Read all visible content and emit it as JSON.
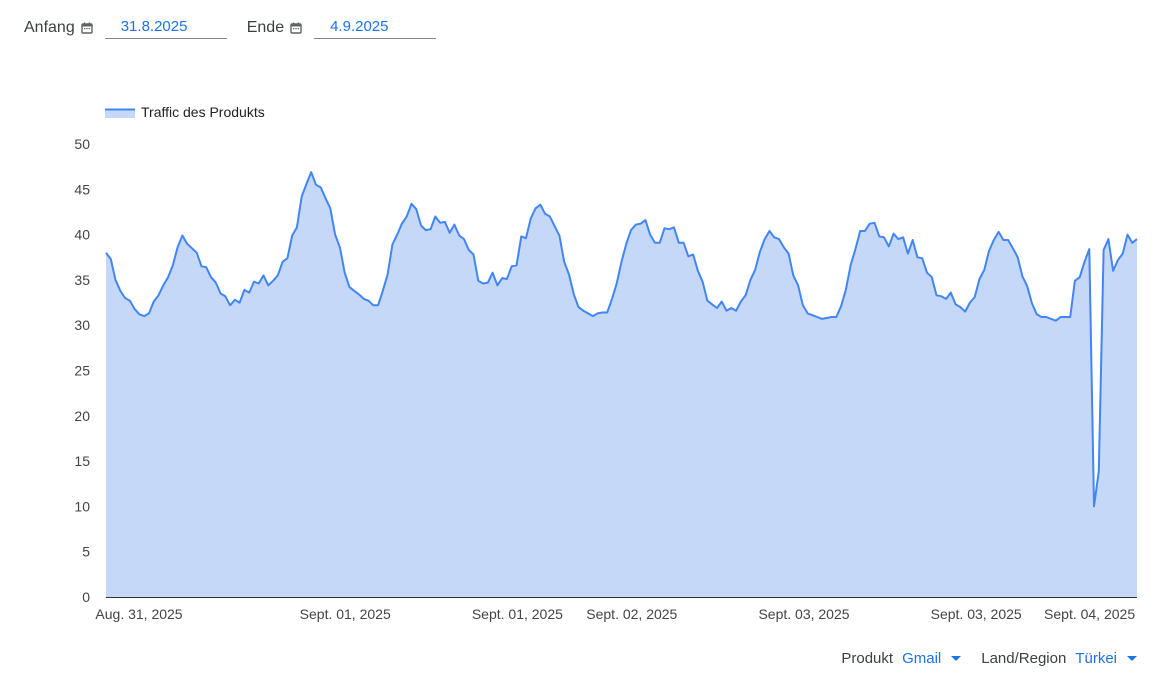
{
  "filters": {
    "start": {
      "label": "Anfang",
      "icon": "calendar-icon",
      "value": "31.8.2025"
    },
    "end": {
      "label": "Ende",
      "icon": "calendar-icon",
      "value": "4.9.2025"
    }
  },
  "selectors": {
    "product": {
      "label": "Produkt",
      "value": "Gmail",
      "icon": "dropdown-arrow-icon"
    },
    "region": {
      "label": "Land/Region",
      "value": "Türkei",
      "icon": "dropdown-arrow-icon"
    }
  },
  "colors": {
    "line": "#4285f4",
    "fill": "#c6d8f8",
    "axis": "#333333",
    "accent": "#1a73e8"
  },
  "chart_data": {
    "type": "area",
    "title": "",
    "xlabel": "",
    "ylabel": "",
    "ylim": [
      0,
      50
    ],
    "yticks": [
      0,
      5,
      10,
      15,
      20,
      25,
      30,
      35,
      40,
      45,
      50
    ],
    "grid": false,
    "legend": {
      "position": "top-left",
      "entries": [
        "Traffic des Produkts"
      ]
    },
    "xtick_labels": [
      "Aug. 31, 2025",
      "Sept. 01, 2025",
      "Sept. 01, 2025",
      "Sept. 02, 2025",
      "Sept. 03, 2025",
      "Sept. 03, 2025",
      "Sept. 04, 2025"
    ],
    "xtick_positions": [
      0.0,
      0.2,
      0.367,
      0.478,
      0.645,
      0.812,
      0.922
    ],
    "series": [
      {
        "name": "Traffic des Produkts",
        "values": [
          38.0,
          37.3,
          35.0,
          33.8,
          33.0,
          32.7,
          31.8,
          31.2,
          31.0,
          31.3,
          32.6,
          33.3,
          34.4,
          35.3,
          36.6,
          38.6,
          39.9,
          39.0,
          38.5,
          38.0,
          36.5,
          36.4,
          35.3,
          34.7,
          33.5,
          33.2,
          32.2,
          32.8,
          32.5,
          33.9,
          33.6,
          34.8,
          34.6,
          35.5,
          34.4,
          34.9,
          35.5,
          37.0,
          37.4,
          39.9,
          40.8,
          44.2,
          45.6,
          46.9,
          45.5,
          45.2,
          44.0,
          42.9,
          40.0,
          38.6,
          35.8,
          34.2,
          33.8,
          33.4,
          32.9,
          32.7,
          32.2,
          32.2,
          33.8,
          35.6,
          38.9,
          40.0,
          41.2,
          42.0,
          43.4,
          42.8,
          41.0,
          40.5,
          40.6,
          42.0,
          41.3,
          41.4,
          40.2,
          41.1,
          39.9,
          39.5,
          38.3,
          37.8,
          34.9,
          34.6,
          34.7,
          35.8,
          34.4,
          35.2,
          35.1,
          36.5,
          36.6,
          39.8,
          39.6,
          41.8,
          42.9,
          43.3,
          42.3,
          42.0,
          40.9,
          39.9,
          37.0,
          35.6,
          33.4,
          32.0,
          31.6,
          31.3,
          31.0,
          31.3,
          31.4,
          31.4,
          32.9,
          34.6,
          37.0,
          39.0,
          40.5,
          41.1,
          41.2,
          41.6,
          40.0,
          39.1,
          39.1,
          40.7,
          40.6,
          40.8,
          39.1,
          39.1,
          37.6,
          37.8,
          36.0,
          34.8,
          32.7,
          32.3,
          31.9,
          32.6,
          31.6,
          31.9,
          31.6,
          32.6,
          33.3,
          35.0,
          36.1,
          38.1,
          39.5,
          40.4,
          39.7,
          39.5,
          38.6,
          37.9,
          35.5,
          34.4,
          32.2,
          31.3,
          31.1,
          30.9,
          30.7,
          30.8,
          30.9,
          30.9,
          32.1,
          33.9,
          36.6,
          38.4,
          40.4,
          40.4,
          41.2,
          41.3,
          39.8,
          39.7,
          38.7,
          40.1,
          39.5,
          39.7,
          37.9,
          39.4,
          37.5,
          37.4,
          35.8,
          35.3,
          33.3,
          33.2,
          32.9,
          33.6,
          32.3,
          32.0,
          31.5,
          32.5,
          33.1,
          35.1,
          36.1,
          38.2,
          39.4,
          40.3,
          39.4,
          39.4,
          38.5,
          37.5,
          35.4,
          34.3,
          32.4,
          31.2,
          30.9,
          30.9,
          30.7,
          30.5,
          30.9,
          30.9,
          30.9,
          34.9,
          35.3,
          37.0,
          38.4,
          10.0,
          13.9,
          38.3,
          39.5,
          36.0,
          37.2,
          37.9,
          40.0,
          39.1,
          39.5
        ]
      }
    ]
  }
}
